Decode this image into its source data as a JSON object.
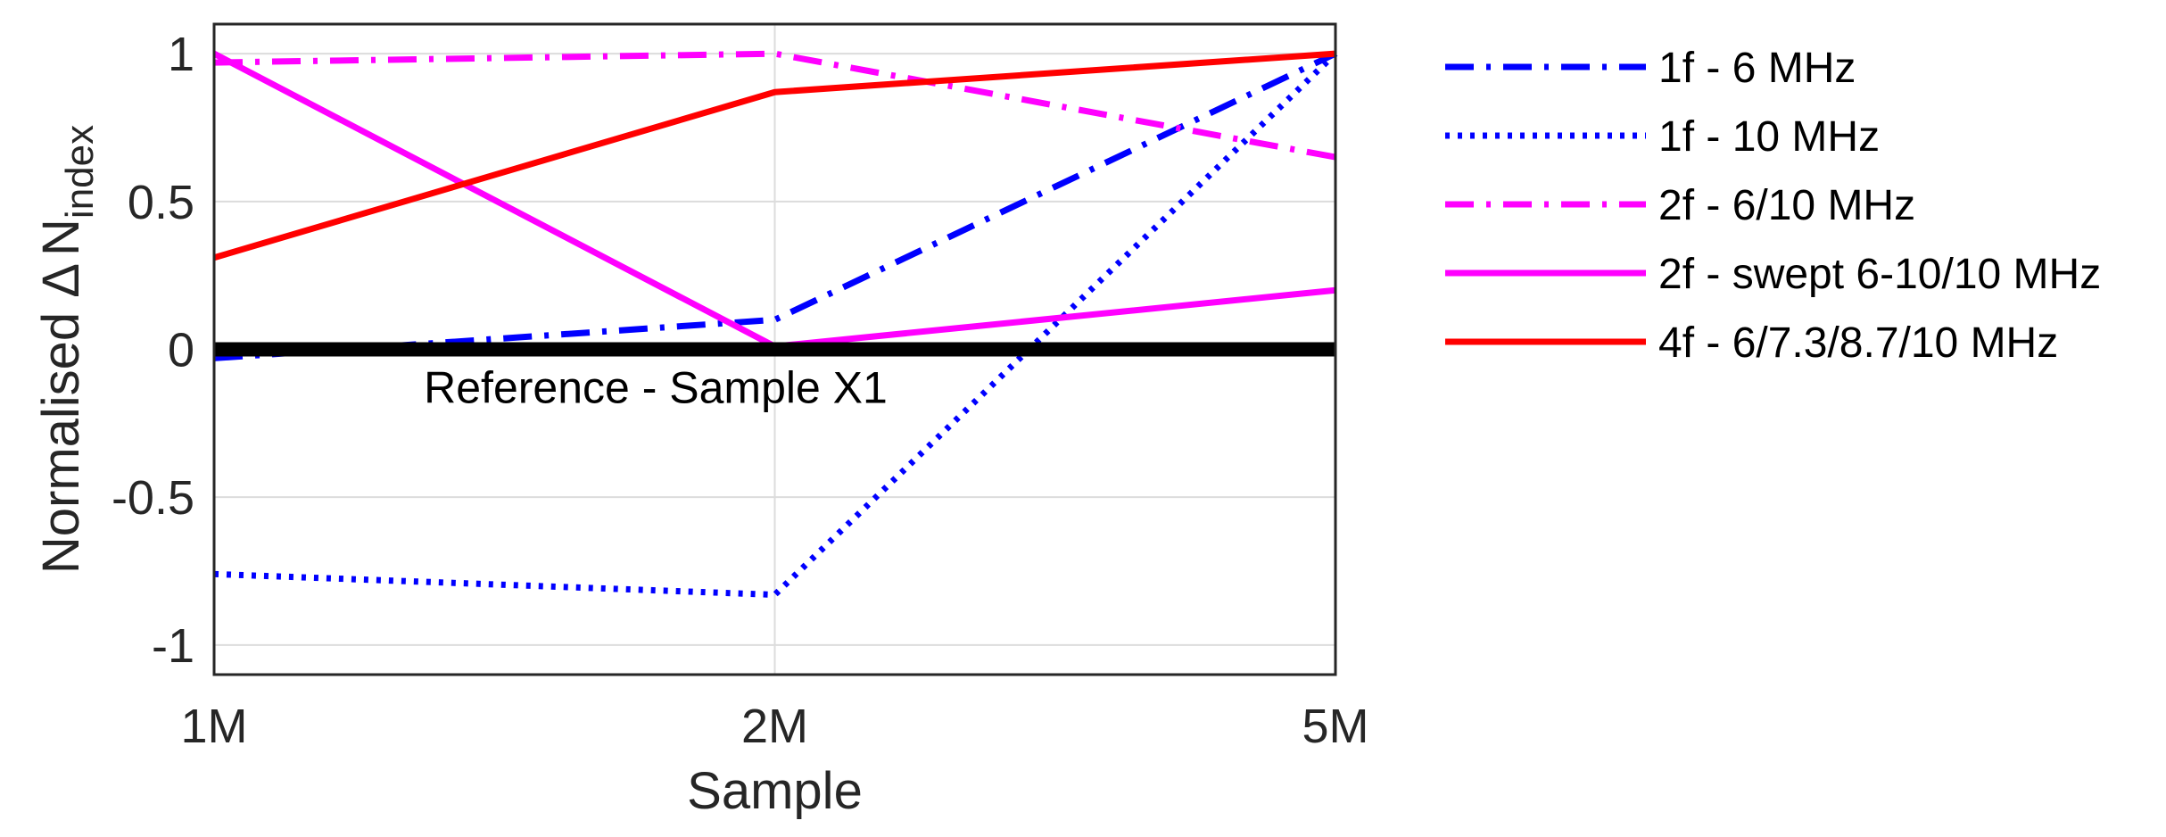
{
  "chart_data": {
    "type": "line",
    "categories": [
      "1M",
      "2M",
      "5M"
    ],
    "xlabel": "Sample",
    "ylabel_main": "Normalised ",
    "ylabel_delta": "Δ",
    "ylabel_symbol": "N",
    "ylabel_subscript": "index",
    "ylim": [
      -1.1,
      1.1
    ],
    "yticks": [
      -1,
      -0.5,
      0,
      0.5,
      1
    ],
    "ytick_labels": [
      "-1",
      "-0.5",
      "0",
      "0.5",
      "1"
    ],
    "grid": true,
    "legend_position": "outside-right",
    "series": [
      {
        "name": "1f - 6 MHz",
        "values": [
          -0.03,
          0.1,
          1.0
        ],
        "color": "#0000ff",
        "style": "dashdot"
      },
      {
        "name": "1f - 10 MHz",
        "values": [
          -0.76,
          -0.83,
          1.0
        ],
        "color": "#0000ff",
        "style": "dotted"
      },
      {
        "name": "2f - 6/10 MHz",
        "values": [
          0.97,
          1.0,
          0.65
        ],
        "color": "#ff00ff",
        "style": "dashdot"
      },
      {
        "name": "2f - swept 6-10/10 MHz",
        "values": [
          1.0,
          0.01,
          0.2
        ],
        "color": "#ff00ff",
        "style": "solid"
      },
      {
        "name": "4f - 6/7.3/8.7/10 MHz",
        "values": [
          0.31,
          0.87,
          1.0
        ],
        "color": "#ff0000",
        "style": "solid"
      }
    ],
    "reference_line": {
      "value": 0,
      "label": "Reference - Sample X1",
      "color": "#000000"
    }
  }
}
